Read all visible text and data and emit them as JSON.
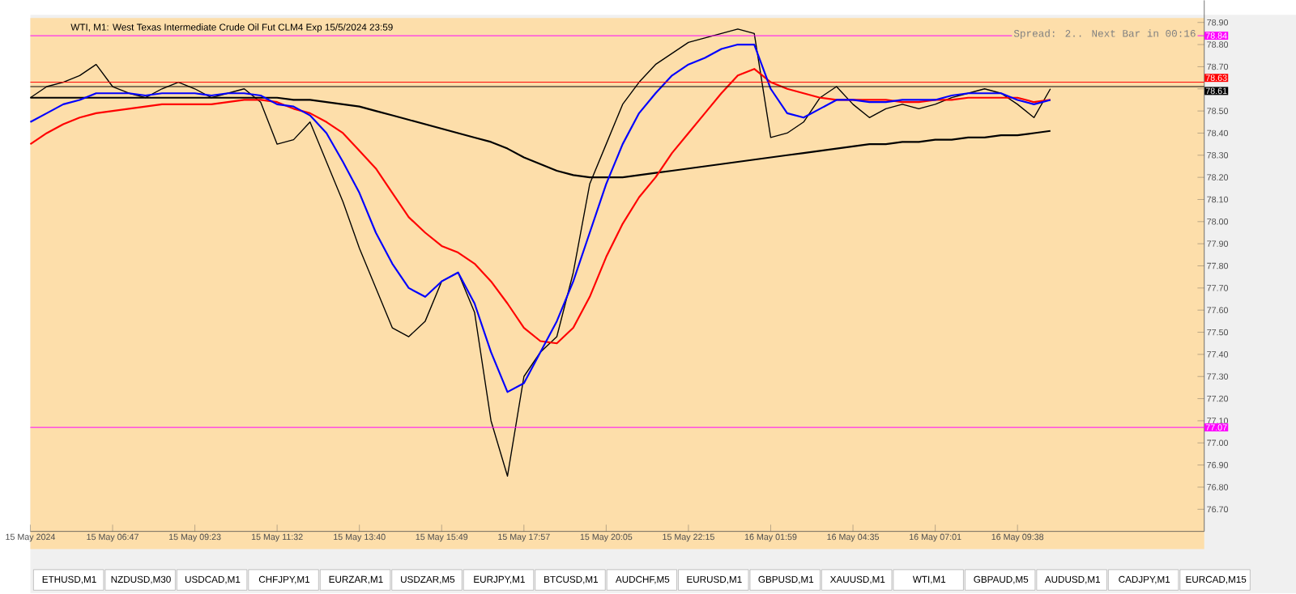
{
  "chart_data": {
    "type": "line",
    "title": "WTI, M1:  West Texas Intermediate Crude Oil Fut CLM4 Exp 15/5/2024 23:59",
    "categories": [
      "15 May 2024",
      null,
      null,
      null,
      null,
      "15 May 06:47",
      null,
      null,
      null,
      null,
      "15 May 09:23",
      null,
      null,
      null,
      null,
      "15 May 11:32",
      null,
      null,
      null,
      null,
      "15 May 13:40",
      null,
      null,
      null,
      null,
      "15 May 15:49",
      null,
      null,
      null,
      null,
      "15 May 17:57",
      null,
      null,
      null,
      null,
      "15 May 20:05",
      null,
      null,
      null,
      null,
      "15 May 22:15",
      null,
      null,
      null,
      null,
      "16 May 01:59",
      null,
      null,
      null,
      null,
      "16 May 04:35",
      null,
      null,
      null,
      null,
      "16 May 07:01",
      null,
      null,
      null,
      null,
      "16 May 09:38",
      null,
      null,
      null,
      null,
      null,
      null,
      null,
      null,
      null,
      null,
      null
    ],
    "series": [
      {
        "color": "#000000",
        "values": [
          78.56,
          78.61,
          78.63,
          78.66,
          78.71,
          78.61,
          78.58,
          78.56,
          78.6,
          78.63,
          78.6,
          78.56,
          78.58,
          78.6,
          78.54,
          78.35,
          78.37,
          78.45,
          78.27,
          78.09,
          77.88,
          77.7,
          77.52,
          77.48,
          77.55,
          77.73,
          77.77,
          77.59,
          77.1,
          76.85,
          77.3,
          77.41,
          77.48,
          77.77,
          78.17,
          78.35,
          78.53,
          78.63,
          78.71,
          78.76,
          78.81,
          78.83,
          78.85,
          78.87,
          78.85,
          78.38,
          78.4,
          78.45,
          78.56,
          78.61,
          78.53,
          78.47,
          78.51,
          78.53,
          78.51,
          78.53,
          78.56,
          78.58,
          78.6,
          78.58,
          78.53,
          78.47,
          78.6,
          null,
          null,
          null,
          null,
          null,
          null,
          null,
          null,
          null
        ]
      },
      {
        "color": "#000000",
        "values": [
          78.56,
          78.56,
          78.56,
          78.56,
          78.56,
          78.56,
          78.56,
          78.56,
          78.56,
          78.56,
          78.56,
          78.56,
          78.56,
          78.56,
          78.56,
          78.56,
          78.55,
          78.55,
          78.54,
          78.53,
          78.52,
          78.5,
          78.48,
          78.46,
          78.44,
          78.42,
          78.4,
          78.38,
          78.36,
          78.33,
          78.29,
          78.26,
          78.23,
          78.21,
          78.2,
          78.2,
          78.2,
          78.21,
          78.22,
          78.23,
          78.24,
          78.25,
          78.26,
          78.27,
          78.28,
          78.29,
          78.3,
          78.31,
          78.32,
          78.33,
          78.34,
          78.35,
          78.35,
          78.36,
          78.36,
          78.37,
          78.37,
          78.38,
          78.38,
          78.39,
          78.39,
          78.4,
          78.41,
          null,
          null,
          null,
          null,
          null,
          null,
          null,
          null,
          null
        ]
      },
      {
        "color": "#ff0000",
        "values": [
          78.35,
          78.4,
          78.44,
          78.47,
          78.49,
          78.5,
          78.51,
          78.52,
          78.53,
          78.53,
          78.53,
          78.53,
          78.54,
          78.55,
          78.55,
          78.54,
          78.51,
          78.49,
          78.45,
          78.4,
          78.32,
          78.24,
          78.13,
          78.02,
          77.95,
          77.89,
          77.86,
          77.81,
          77.73,
          77.63,
          77.52,
          77.46,
          77.45,
          77.52,
          77.66,
          77.84,
          77.99,
          78.11,
          78.2,
          78.31,
          78.4,
          78.49,
          78.58,
          78.66,
          78.69,
          78.63,
          78.6,
          78.58,
          78.56,
          78.55,
          78.55,
          78.55,
          78.55,
          78.54,
          78.54,
          78.55,
          78.55,
          78.56,
          78.56,
          78.56,
          78.56,
          78.54,
          78.55,
          null,
          null,
          null,
          null,
          null,
          null,
          null,
          null,
          null
        ]
      },
      {
        "color": "#0000ff",
        "values": [
          78.45,
          78.49,
          78.53,
          78.55,
          78.58,
          78.58,
          78.58,
          78.57,
          78.58,
          78.58,
          78.58,
          78.57,
          78.58,
          78.58,
          78.57,
          78.53,
          78.52,
          78.48,
          78.4,
          78.27,
          78.13,
          77.95,
          77.81,
          77.7,
          77.66,
          77.73,
          77.77,
          77.63,
          77.41,
          77.23,
          77.27,
          77.41,
          77.55,
          77.73,
          77.95,
          78.17,
          78.35,
          78.49,
          78.58,
          78.66,
          78.71,
          78.74,
          78.78,
          78.8,
          78.8,
          78.6,
          78.49,
          78.47,
          78.51,
          78.55,
          78.55,
          78.54,
          78.54,
          78.55,
          78.55,
          78.55,
          78.57,
          78.58,
          78.58,
          78.58,
          78.55,
          78.53,
          78.55,
          null,
          null,
          null,
          null,
          null,
          null,
          null,
          null,
          null
        ]
      }
    ],
    "ylim": [
      76.6,
      79.0
    ],
    "yticks": [
      {
        "value": 76.7,
        "label": "76.70"
      },
      {
        "value": 76.8,
        "label": "76.80"
      },
      {
        "value": 76.9,
        "label": "76.90"
      },
      {
        "value": 77.0,
        "label": "77.00"
      },
      {
        "value": 77.1,
        "label": "77.10"
      },
      {
        "value": 77.2,
        "label": "77.20"
      },
      {
        "value": 77.3,
        "label": "77.30"
      },
      {
        "value": 77.4,
        "label": "77.40"
      },
      {
        "value": 77.5,
        "label": "77.50"
      },
      {
        "value": 77.6,
        "label": "77.60"
      },
      {
        "value": 77.7,
        "label": "77.70"
      },
      {
        "value": 77.8,
        "label": "77.80"
      },
      {
        "value": 77.9,
        "label": "77.90"
      },
      {
        "value": 78.0,
        "label": "78.00"
      },
      {
        "value": 78.1,
        "label": "78.10"
      },
      {
        "value": 78.2,
        "label": "78.20"
      },
      {
        "value": 78.3,
        "label": "78.30"
      },
      {
        "value": 78.4,
        "label": "78.40"
      },
      {
        "value": 78.5,
        "label": "78.50"
      },
      {
        "value": 78.6,
        "label": null
      },
      {
        "value": 78.7,
        "label": "78.70"
      },
      {
        "value": 78.8,
        "label": "78.80"
      },
      {
        "value": 78.9,
        "label": "78.90"
      }
    ],
    "ref_lines": [
      {
        "axis": "y",
        "value": 78.84,
        "label": "78.84",
        "color": "#ff00ff"
      },
      {
        "axis": "y",
        "value": 78.63,
        "label": "78.63",
        "color": "#ff0000"
      },
      {
        "axis": "y",
        "value": 78.61,
        "label": "78.61",
        "color": "#000000"
      },
      {
        "axis": "y",
        "value": 77.07,
        "label": "77.07",
        "color": "#ff00ff"
      }
    ],
    "annotations": [
      "Spread: 2.. Next Bar in 00:16",
      "ETHUSD,M1",
      "NZDUSD,M30",
      "USDCAD,M1",
      "CHFJPY,M1",
      "EURZAR,M1",
      "USDZAR,M5",
      "EURJPY,M1",
      "BTCUSD,M1",
      "AUDCHF,M5",
      "EURUSD,M1",
      "GBPUSD,M1",
      "XAUUSD,M1",
      "WTI,M1",
      "GBPAUD,M5",
      "AUDUSD,M1",
      "CADJPY,M1",
      "EURCAD,M15"
    ],
    "grid": false,
    "marker": "none",
    "line_style": "solid"
  }
}
